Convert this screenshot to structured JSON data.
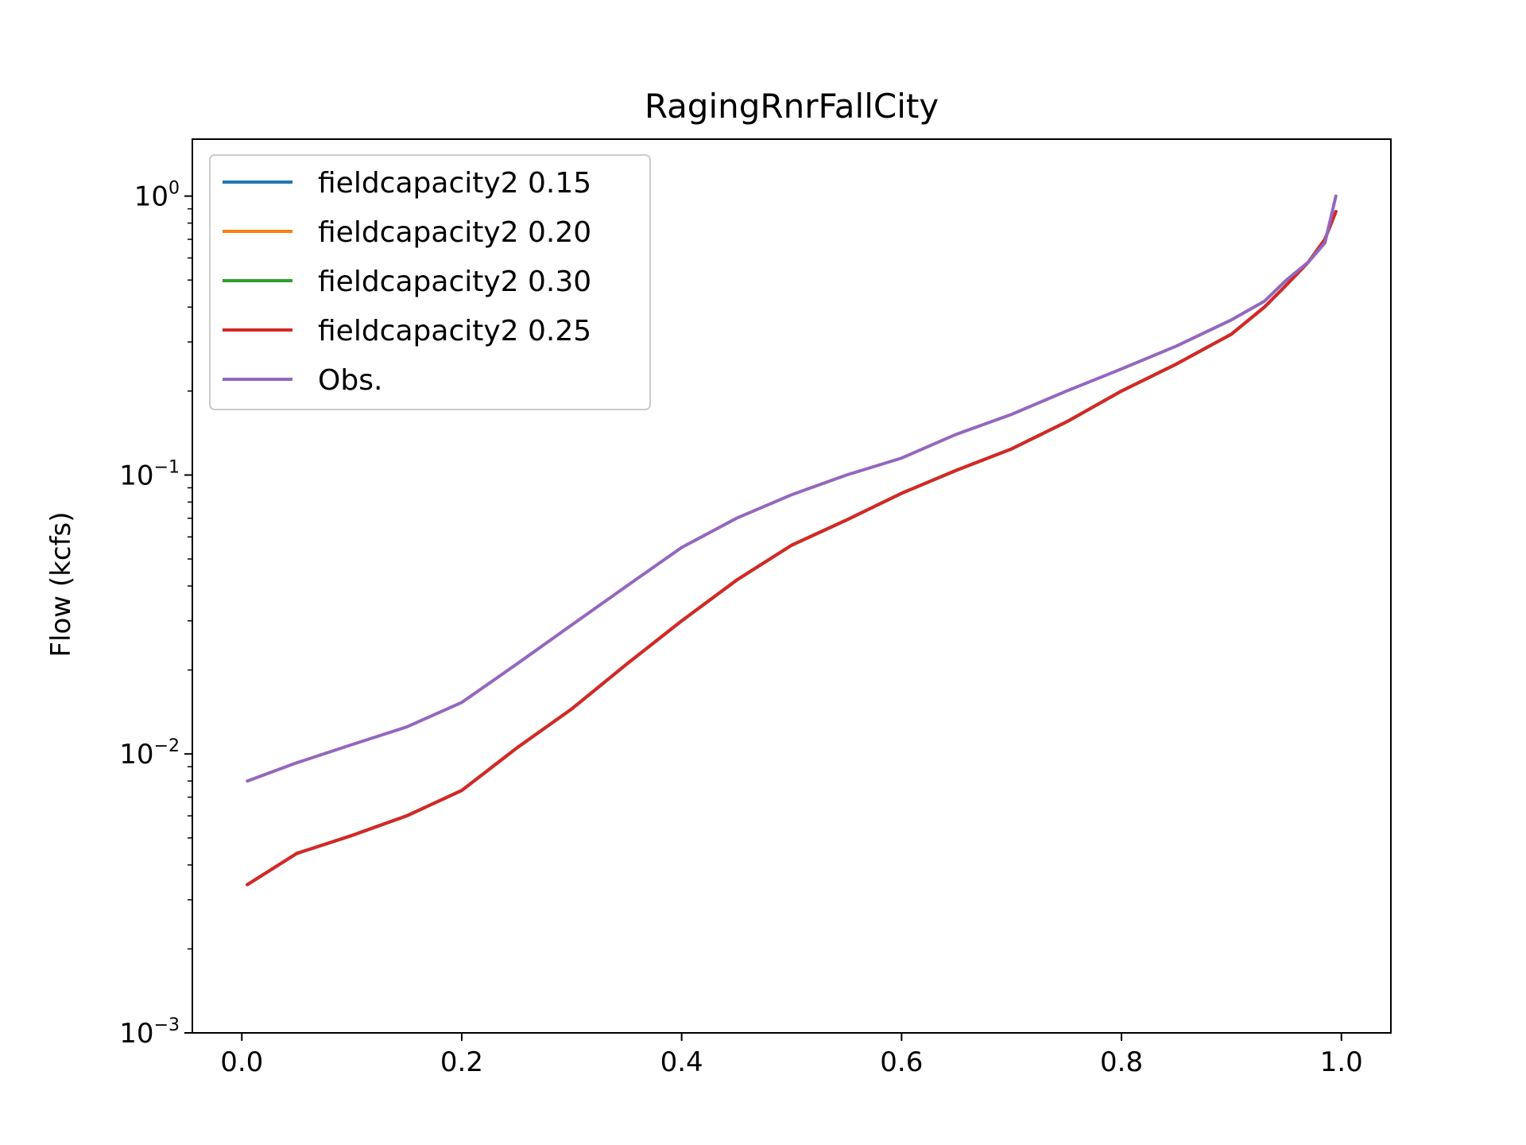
{
  "chart_data": {
    "type": "line",
    "title": "RagingRnrFallCity",
    "xlabel": "",
    "ylabel": "Flow (kcfs)",
    "yscale": "log",
    "xlim": [
      -0.045,
      1.045
    ],
    "ylim": [
      0.001,
      1.6
    ],
    "xticks": [
      {
        "value": 0.0,
        "label": "0.0"
      },
      {
        "value": 0.2,
        "label": "0.2"
      },
      {
        "value": 0.4,
        "label": "0.4"
      },
      {
        "value": 0.6,
        "label": "0.6"
      },
      {
        "value": 0.8,
        "label": "0.8"
      },
      {
        "value": 1.0,
        "label": "1.0"
      }
    ],
    "yticks": [
      {
        "value": 1,
        "base": "10",
        "exp": "0"
      },
      {
        "value": 0.1,
        "base": "10",
        "exp": "−1"
      },
      {
        "value": 0.01,
        "base": "10",
        "exp": "−2"
      },
      {
        "value": 0.001,
        "base": "10",
        "exp": "−3"
      }
    ],
    "grid": false,
    "legend_position": "top-left",
    "x": [
      0.005,
      0.05,
      0.1,
      0.15,
      0.2,
      0.25,
      0.3,
      0.35,
      0.4,
      0.45,
      0.5,
      0.55,
      0.6,
      0.65,
      0.7,
      0.75,
      0.8,
      0.85,
      0.9,
      0.93,
      0.95,
      0.97,
      0.985,
      0.995
    ],
    "series": [
      {
        "name": "fieldcapacity2 0.15",
        "color": "#1f77b4",
        "values": [
          0.0034,
          0.0044,
          0.0051,
          0.006,
          0.0074,
          0.0105,
          0.0145,
          0.021,
          0.03,
          0.042,
          0.056,
          0.069,
          0.086,
          0.104,
          0.124,
          0.155,
          0.2,
          0.25,
          0.32,
          0.4,
          0.48,
          0.58,
          0.7,
          0.88
        ]
      },
      {
        "name": "fieldcapacity2 0.20",
        "color": "#ff7f0e",
        "values": [
          0.0034,
          0.0044,
          0.0051,
          0.006,
          0.0074,
          0.0105,
          0.0145,
          0.021,
          0.03,
          0.042,
          0.056,
          0.069,
          0.086,
          0.104,
          0.124,
          0.155,
          0.2,
          0.25,
          0.32,
          0.4,
          0.48,
          0.58,
          0.7,
          0.88
        ]
      },
      {
        "name": "fieldcapacity2 0.30",
        "color": "#2ca02c",
        "values": [
          0.0034,
          0.0044,
          0.0051,
          0.006,
          0.0074,
          0.0105,
          0.0145,
          0.021,
          0.03,
          0.042,
          0.056,
          0.069,
          0.086,
          0.104,
          0.124,
          0.155,
          0.2,
          0.25,
          0.32,
          0.4,
          0.48,
          0.58,
          0.7,
          0.88
        ]
      },
      {
        "name": "fieldcapacity2 0.25",
        "color": "#d62728",
        "values": [
          0.0034,
          0.0044,
          0.0051,
          0.006,
          0.0074,
          0.0105,
          0.0145,
          0.021,
          0.03,
          0.042,
          0.056,
          0.069,
          0.086,
          0.104,
          0.124,
          0.155,
          0.2,
          0.25,
          0.32,
          0.4,
          0.48,
          0.58,
          0.7,
          0.88
        ]
      },
      {
        "name": "Obs.",
        "color": "#9467bd",
        "values": [
          0.008,
          0.0093,
          0.0108,
          0.0125,
          0.0153,
          0.021,
          0.029,
          0.04,
          0.055,
          0.07,
          0.085,
          0.1,
          0.115,
          0.14,
          0.165,
          0.2,
          0.24,
          0.29,
          0.36,
          0.42,
          0.5,
          0.58,
          0.68,
          1.0
        ]
      }
    ]
  }
}
